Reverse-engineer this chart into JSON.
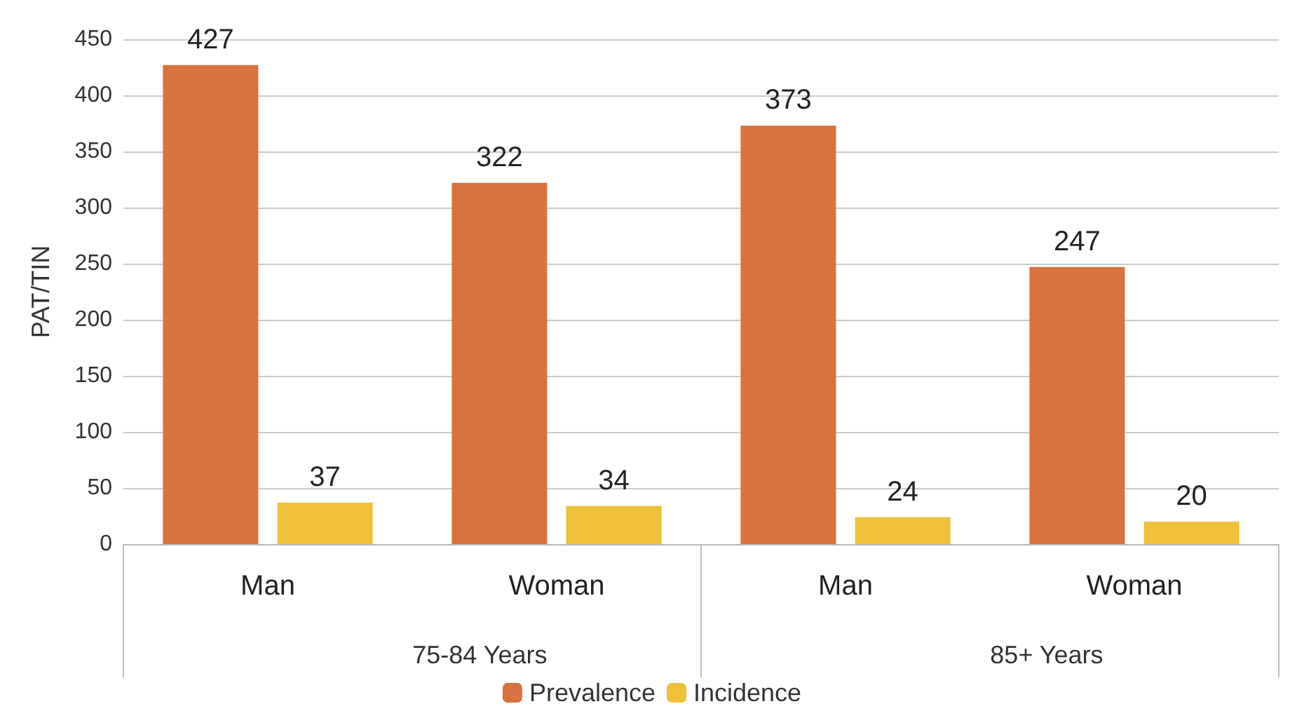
{
  "chart_data": {
    "type": "bar",
    "ylabel": "PAT/TIN",
    "categories": [
      "Man",
      "Woman",
      "Man",
      "Woman"
    ],
    "series": [
      {
        "name": "Prevalence",
        "color": "#d8723e",
        "values": [
          427,
          322,
          373,
          247
        ]
      },
      {
        "name": "Incidence",
        "color": "#efc13a",
        "values": [
          37,
          34,
          24,
          20
        ]
      }
    ],
    "ylim": [
      0,
      450
    ],
    "yticks": [
      0,
      50,
      100,
      150,
      200,
      250,
      300,
      350,
      400,
      450
    ],
    "grid": "y",
    "legend": "bottom",
    "data_labels": true,
    "annotations": [
      "75-84 Years",
      "85+ Years"
    ]
  }
}
